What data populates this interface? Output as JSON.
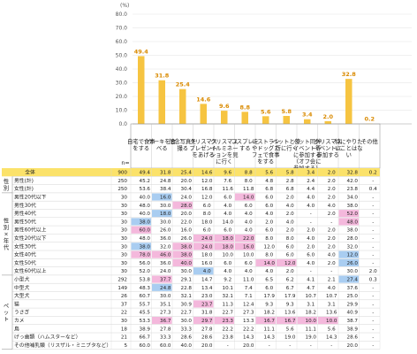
{
  "chart_data": {
    "type": "bar",
    "unit": "(%)",
    "yticks": [
      "80.0",
      "70.0",
      "60.0",
      "50.0",
      "40.0",
      "30.0",
      "20.0",
      "10.0",
      "0.0"
    ],
    "ylim": [
      0,
      80
    ],
    "n_label": "n=",
    "categories": [
      "自宅で食事をする",
      "ケーキを食べる",
      "記念写真を撮る",
      "クリスマスプレゼントをあげる",
      "クリスマスイルミネーションを見に行く",
      "コスプレをする",
      "レストランやドッグカフェで食事をする",
      "ペットと旅行に行く",
      "ペット同伴イベント等に参加する（オフ会に参加する）",
      "クリスマスイベントに参加する",
      "特にやりたいことはない",
      "その他"
    ],
    "values": [
      49.4,
      31.8,
      25.4,
      14.6,
      9.6,
      8.8,
      5.6,
      5.8,
      3.4,
      2.0,
      32.8,
      0.2
    ],
    "bar_color": "#f6c441",
    "highlight_colors": {
      "high": "#f4b8dc",
      "low": "#a9cdf1",
      "total_row": "#fbe26a"
    },
    "rows": [
      {
        "label": "全体",
        "n": "900",
        "v": [
          "49.4",
          "31.8",
          "25.4",
          "14.6",
          "9.6",
          "8.8",
          "5.6",
          "5.8",
          "3.4",
          "2.0",
          "32.8",
          "0.2"
        ],
        "hl": [
          0,
          0,
          0,
          0,
          0,
          0,
          0,
          0,
          0,
          0,
          0,
          0
        ],
        "total": true
      },
      {
        "label": "男性(計)",
        "n": "250",
        "v": [
          "45.2",
          "24.8",
          "20.0",
          "12.0",
          "7.6",
          "8.0",
          "4.8",
          "2.8",
          "2.4",
          "2.0",
          "42.0",
          "-"
        ],
        "hl": [
          0,
          0,
          0,
          0,
          0,
          0,
          0,
          0,
          0,
          0,
          0,
          0
        ]
      },
      {
        "label": "女性(計)",
        "n": "250",
        "v": [
          "53.6",
          "38.4",
          "30.4",
          "16.8",
          "11.6",
          "11.8",
          "6.8",
          "6.8",
          "4.4",
          "2.0",
          "23.8",
          "0.4"
        ],
        "hl": [
          0,
          0,
          0,
          0,
          0,
          0,
          0,
          0,
          0,
          0,
          0,
          0
        ]
      },
      {
        "label": "男性20代以下",
        "n": "30",
        "v": [
          "40.0",
          "16.0",
          "24.0",
          "12.0",
          "6.0",
          "14.0",
          "6.0",
          "2.0",
          "4.0",
          "2.0",
          "34.0",
          "-"
        ],
        "hl": [
          0,
          -1,
          0,
          0,
          0,
          1,
          0,
          0,
          0,
          0,
          0,
          0
        ]
      },
      {
        "label": "男性30代",
        "n": "30",
        "v": [
          "48.0",
          "30.0",
          "28.0",
          "6.0",
          "4.0",
          "6.0",
          "6.0",
          "4.0",
          "4.0",
          "4.0",
          "38.0",
          "-"
        ],
        "hl": [
          0,
          0,
          1,
          0,
          0,
          0,
          0,
          0,
          0,
          0,
          0,
          0
        ]
      },
      {
        "label": "男性40代",
        "n": "30",
        "v": [
          "40.0",
          "18.0",
          "20.0",
          "8.0",
          "4.0",
          "4.0",
          "4.0",
          "2.0",
          "-",
          "2.0",
          "52.0",
          "-"
        ],
        "hl": [
          0,
          -1,
          0,
          0,
          0,
          0,
          0,
          0,
          0,
          0,
          1,
          0
        ]
      },
      {
        "label": "男性50代",
        "n": "30",
        "v": [
          "38.0",
          "30.0",
          "22.0",
          "18.0",
          "14.0",
          "4.0",
          "2.0",
          "4.0",
          "-",
          "-",
          "48.0",
          "-"
        ],
        "hl": [
          -1,
          0,
          0,
          0,
          0,
          0,
          0,
          0,
          0,
          0,
          1,
          0
        ]
      },
      {
        "label": "男性60代以上",
        "n": "30",
        "v": [
          "60.0",
          "26.0",
          "16.0",
          "6.0",
          "6.0",
          "4.0",
          "6.0",
          "2.0",
          "2.0",
          "2.0",
          "38.0",
          "-"
        ],
        "hl": [
          1,
          0,
          0,
          0,
          0,
          0,
          0,
          0,
          0,
          0,
          0,
          0
        ]
      },
      {
        "label": "女性20代以下",
        "n": "30",
        "v": [
          "48.0",
          "36.0",
          "26.0",
          "24.0",
          "18.0",
          "22.0",
          "8.0",
          "8.0",
          "4.0",
          "2.0",
          "28.0",
          "-"
        ],
        "hl": [
          0,
          0,
          0,
          1,
          1,
          1,
          0,
          0,
          0,
          0,
          0,
          0
        ]
      },
      {
        "label": "女性30代",
        "n": "30",
        "v": [
          "38.0",
          "32.0",
          "38.0",
          "24.0",
          "18.0",
          "16.0",
          "12.0",
          "6.0",
          "2.0",
          "2.0",
          "32.0",
          "-"
        ],
        "hl": [
          -1,
          0,
          1,
          1,
          1,
          1,
          0,
          0,
          0,
          0,
          0,
          0
        ]
      },
      {
        "label": "女性40代",
        "n": "30",
        "v": [
          "78.0",
          "46.0",
          "38.0",
          "18.0",
          "10.0",
          "10.0",
          "8.0",
          "6.0",
          "6.0",
          "4.0",
          "12.0",
          "-"
        ],
        "hl": [
          1,
          1,
          1,
          0,
          0,
          0,
          0,
          0,
          0,
          0,
          -1,
          0
        ]
      },
      {
        "label": "女性50代",
        "n": "30",
        "v": [
          "56.0",
          "36.0",
          "40.0",
          "16.0",
          "6.0",
          "6.0",
          "14.0",
          "12.0",
          "4.0",
          "2.0",
          "26.0",
          "-"
        ],
        "hl": [
          0,
          0,
          1,
          0,
          0,
          0,
          1,
          1,
          0,
          0,
          -1,
          0
        ]
      },
      {
        "label": "女性60代以上",
        "n": "30",
        "v": [
          "52.0",
          "24.0",
          "30.0",
          "4.0",
          "4.0",
          "4.0",
          "4.0",
          "2.0",
          "-",
          "-",
          "30.0",
          "2.0"
        ],
        "hl": [
          0,
          0,
          0,
          -1,
          0,
          0,
          0,
          0,
          0,
          0,
          0,
          0
        ]
      },
      {
        "label": "小型犬",
        "n": "292",
        "v": [
          "53.8",
          "37.7",
          "29.1",
          "14.7",
          "9.2",
          "11.0",
          "6.5",
          "6.2",
          "4.1",
          "2.1",
          "27.4",
          "0.3"
        ],
        "hl": [
          0,
          1,
          0,
          0,
          0,
          0,
          0,
          0,
          0,
          0,
          -1,
          0
        ]
      },
      {
        "label": "中型犬",
        "n": "149",
        "v": [
          "48.3",
          "24.8",
          "22.8",
          "13.4",
          "10.1",
          "7.4",
          "6.0",
          "6.7",
          "4.7",
          "4.0",
          "37.6",
          "-"
        ],
        "hl": [
          0,
          -1,
          0,
          0,
          0,
          0,
          0,
          0,
          0,
          0,
          0,
          0
        ]
      },
      {
        "label": "大型犬",
        "n": "26",
        "v": [
          "60.7",
          "30.0",
          "32.1",
          "23.0",
          "32.1",
          "7.1",
          "17.9",
          "17.9",
          "10.7",
          "10.7",
          "25.0",
          "-"
        ],
        "hl": [
          0,
          0,
          0,
          0,
          0,
          0,
          0,
          0,
          0,
          0,
          0,
          0
        ]
      },
      {
        "label": "猫",
        "n": "37",
        "v": [
          "55.7",
          "35.1",
          "30.9",
          "23.7",
          "11.3",
          "12.4",
          "9.3",
          "9.3",
          "3.1",
          "3.1",
          "29.9",
          "-"
        ],
        "hl": [
          0,
          0,
          0,
          1,
          0,
          0,
          0,
          0,
          0,
          0,
          0,
          0
        ]
      },
      {
        "label": "うさぎ",
        "n": "22",
        "v": [
          "45.5",
          "27.3",
          "22.7",
          "31.8",
          "22.7",
          "27.3",
          "18.2",
          "13.6",
          "18.2",
          "13.6",
          "40.9",
          "-"
        ],
        "hl": [
          0,
          0,
          0,
          0,
          0,
          0,
          0,
          0,
          0,
          0,
          0,
          0
        ]
      },
      {
        "label": "カメ",
        "n": "30",
        "v": [
          "53.3",
          "36.7",
          "30.0",
          "29.7",
          "23.3",
          "13.3",
          "16.7",
          "16.7",
          "10.0",
          "10.0",
          "38.7",
          "-"
        ],
        "hl": [
          0,
          1,
          0,
          1,
          1,
          0,
          1,
          1,
          1,
          1,
          0,
          0
        ]
      },
      {
        "label": "鳥",
        "n": "18",
        "v": [
          "38.9",
          "27.8",
          "33.3",
          "27.8",
          "22.2",
          "22.2",
          "11.1",
          "5.6",
          "11.1",
          "5.6",
          "38.9",
          "-"
        ],
        "hl": [
          0,
          0,
          0,
          0,
          0,
          0,
          0,
          0,
          0,
          0,
          0,
          0
        ]
      },
      {
        "label": "げっ歯類（ハムスターなど）",
        "n": "21",
        "v": [
          "66.7",
          "33.3",
          "28.6",
          "28.6",
          "23.8",
          "14.3",
          "14.3",
          "19.0",
          "19.0",
          "14.3",
          "28.6",
          "-"
        ],
        "hl": [
          0,
          0,
          0,
          0,
          0,
          0,
          0,
          0,
          0,
          0,
          0,
          0
        ]
      },
      {
        "label": "その他哺乳類（リスザル・ミニブタなど）",
        "n": "5",
        "v": [
          "60.0",
          "60.0",
          "40.0",
          "20.0",
          "-",
          "20.0",
          "-",
          "-",
          "-",
          "-",
          "20.0",
          "-"
        ],
        "hl": [
          0,
          0,
          0,
          0,
          0,
          0,
          0,
          0,
          0,
          0,
          0,
          0
        ]
      }
    ],
    "groups": [
      {
        "label": "性別",
        "from": 1,
        "to": 2
      },
      {
        "label": "性別×年代",
        "from": 3,
        "to": 12
      },
      {
        "label": "ペット",
        "from": 13,
        "to": 21
      }
    ]
  }
}
